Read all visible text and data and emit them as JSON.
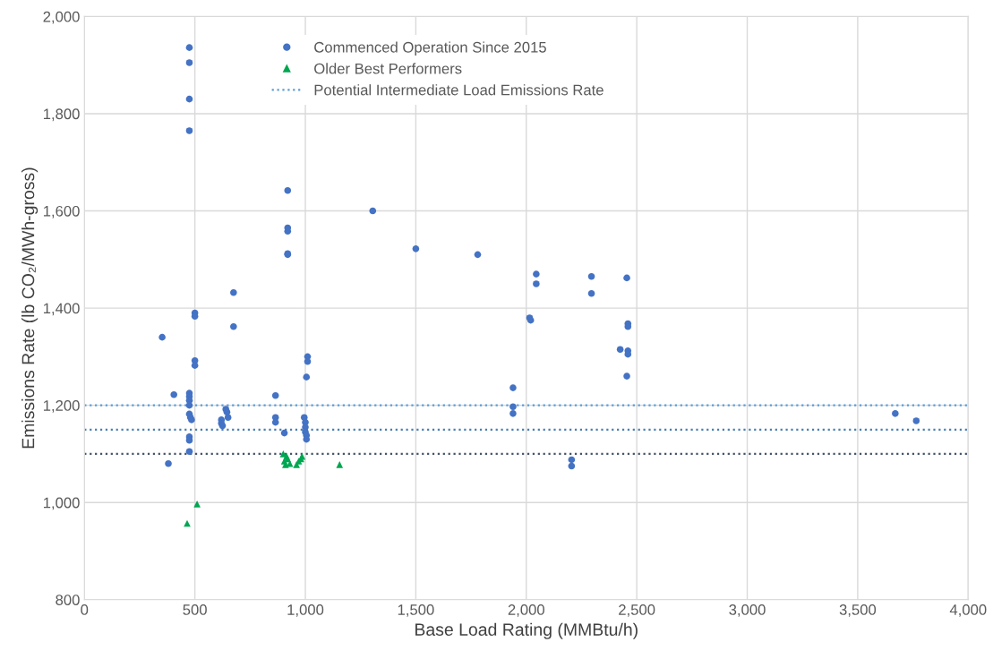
{
  "chart_data": {
    "type": "scatter",
    "xlabel": "Base Load Rating (MMBtu/h)",
    "ylabel": "Emissions Rate (lb CO₂/MWh-gross)",
    "series": [
      {
        "name": "Commenced Operation Since 2015",
        "color": "#4472c4",
        "marker": "circle",
        "x": [
          475,
          475,
          475,
          475,
          352,
          405,
          380,
          475,
          475,
          475,
          475,
          475,
          480,
          485,
          475,
          475,
          475,
          500,
          500,
          500,
          500,
          620,
          620,
          625,
          640,
          645,
          650,
          675,
          675,
          865,
          865,
          865,
          905,
          920,
          920,
          920,
          920,
          920,
          995,
          1000,
          1000,
          1000,
          1005,
          1005,
          1010,
          1010,
          1005,
          1305,
          1500,
          1780,
          1940,
          1940,
          1940,
          2015,
          2020,
          2045,
          2045,
          2205,
          2205,
          2295,
          2295,
          2425,
          2455,
          2460,
          2460,
          2460,
          2460,
          2455,
          3670,
          3765
        ],
        "values": [
          1936,
          1905,
          1830,
          1765,
          1340,
          1222,
          1080,
          1225,
          1218,
          1210,
          1200,
          1182,
          1175,
          1170,
          1135,
          1128,
          1105,
          1390,
          1383,
          1292,
          1282,
          1170,
          1163,
          1158,
          1192,
          1186,
          1175,
          1432,
          1362,
          1220,
          1175,
          1165,
          1143,
          1642,
          1565,
          1558,
          1512,
          1510,
          1175,
          1165,
          1155,
          1145,
          1138,
          1130,
          1300,
          1290,
          1258,
          1600,
          1522,
          1510,
          1236,
          1197,
          1183,
          1380,
          1375,
          1470,
          1450,
          1088,
          1075,
          1465,
          1430,
          1315,
          1462,
          1368,
          1362,
          1312,
          1305,
          1260,
          1183,
          1168
        ]
      },
      {
        "name": "Older Best Performers",
        "color": "#00a651",
        "marker": "triangle",
        "x": [
          465,
          510,
          900,
          905,
          910,
          915,
          920,
          930,
          960,
          970,
          980,
          985,
          1155
        ],
        "values": [
          957,
          997,
          1100,
          1085,
          1078,
          1095,
          1090,
          1080,
          1078,
          1085,
          1090,
          1095,
          1078
        ]
      }
    ],
    "ref_lines": [
      {
        "axis": "y",
        "value": 1200,
        "label": "Potential Intermediate Load Emissions Rate",
        "color": "#5b9bd5",
        "line_style": "dotted"
      },
      {
        "axis": "y",
        "value": 1150,
        "color": "#4a7fb0",
        "line_style": "dotted"
      },
      {
        "axis": "y",
        "value": 1100,
        "color": "#44546a",
        "line_style": "dotted"
      }
    ],
    "xlim": [
      0,
      4000
    ],
    "xticks": [
      {
        "value": 0,
        "label": "0"
      },
      {
        "value": 500,
        "label": "500"
      },
      {
        "value": 1000,
        "label": "1,000"
      },
      {
        "value": 1500,
        "label": "1,500"
      },
      {
        "value": 2000,
        "label": "2,000"
      },
      {
        "value": 2500,
        "label": "2,500"
      },
      {
        "value": 3000,
        "label": "3,000"
      },
      {
        "value": 3500,
        "label": "3,500"
      },
      {
        "value": 4000,
        "label": "4,000"
      }
    ],
    "ylim": [
      800,
      2000
    ],
    "yticks": [
      {
        "value": 800,
        "label": "800"
      },
      {
        "value": 1000,
        "label": "1,000"
      },
      {
        "value": 1200,
        "label": "1,200"
      },
      {
        "value": 1400,
        "label": "1,400"
      },
      {
        "value": 1600,
        "label": "1,600"
      },
      {
        "value": 1800,
        "label": "1,800"
      },
      {
        "value": 2000,
        "label": "2,000"
      }
    ],
    "grid": true,
    "legend": "top"
  }
}
